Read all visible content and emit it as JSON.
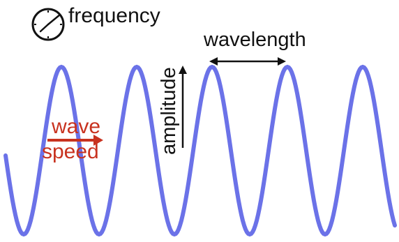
{
  "labels": {
    "frequency": "frequency",
    "wavelength": "wavelength",
    "amplitude": "amplitude",
    "wave": "wave",
    "speed": "speed"
  },
  "icons": {
    "frequency_icon": "clock-icon"
  },
  "colors": {
    "wave": "#6b72e8",
    "speed": "#c8321f",
    "ink": "#111111"
  }
}
